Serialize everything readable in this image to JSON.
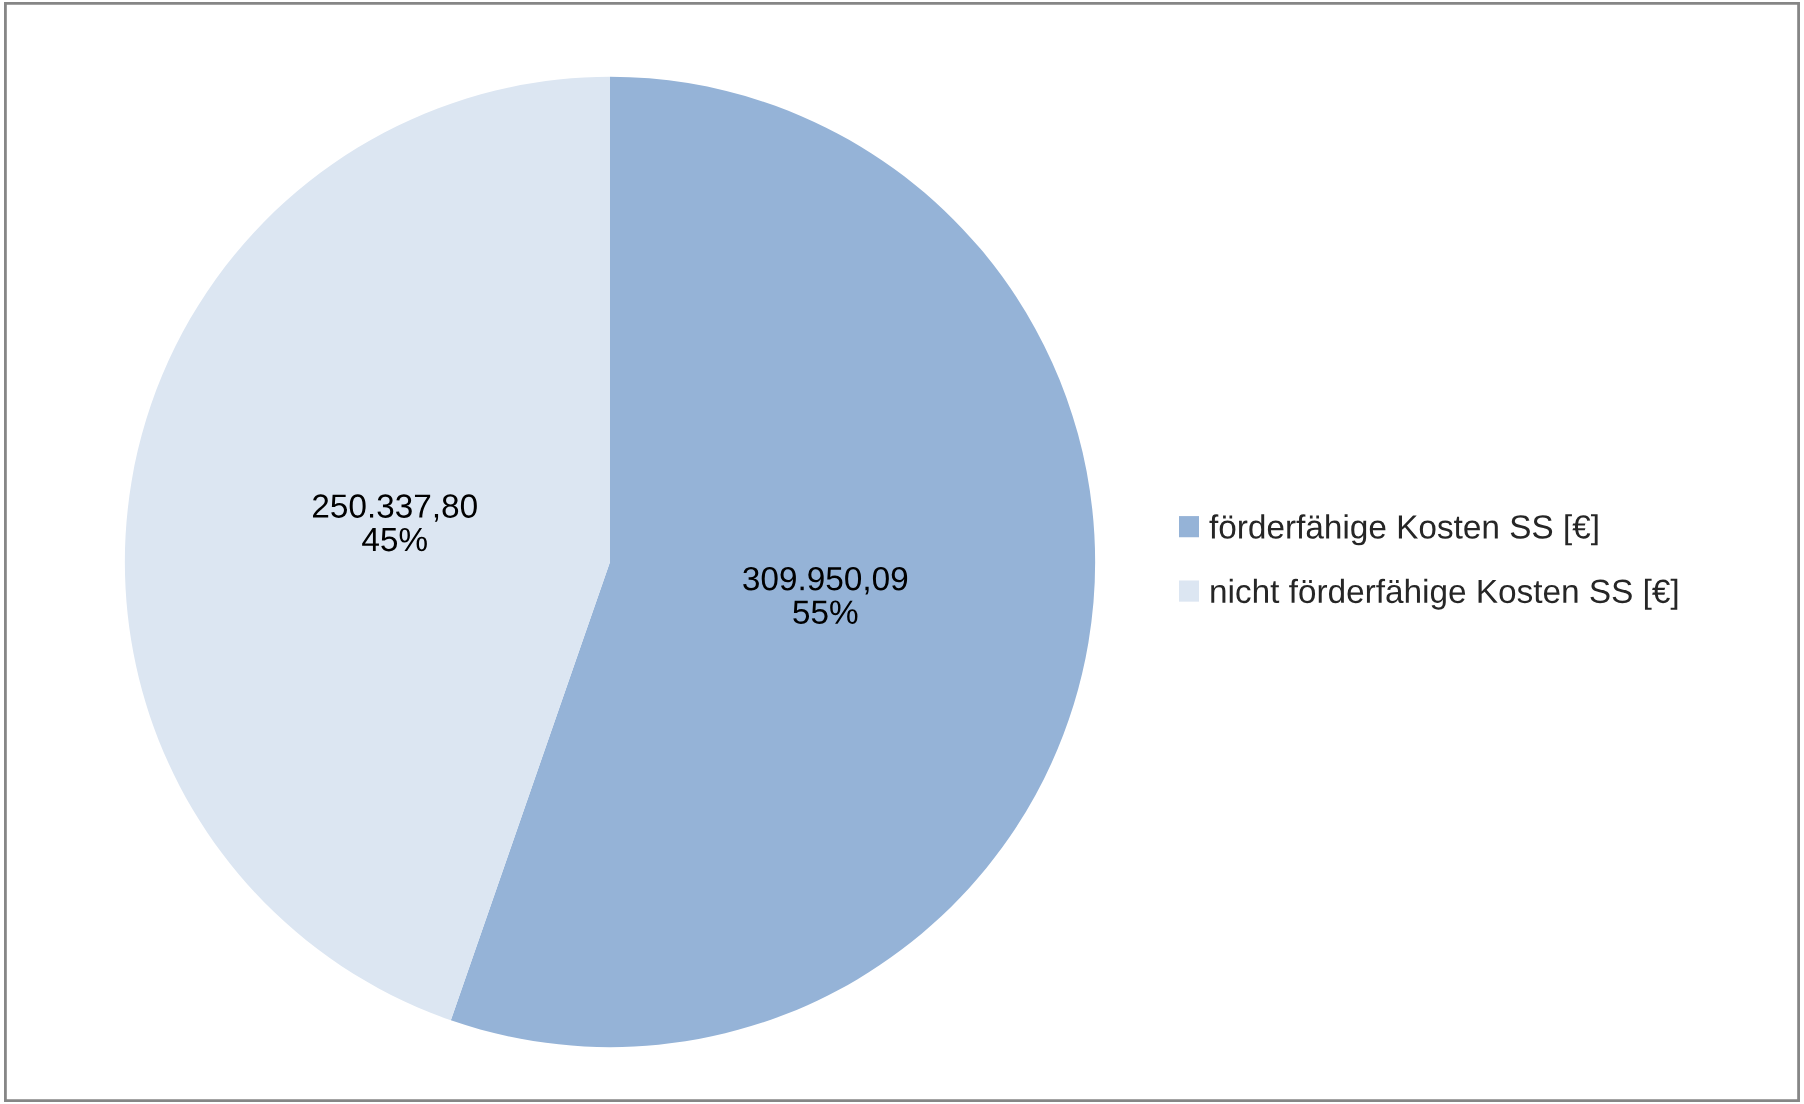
{
  "chart_data": {
    "type": "pie",
    "categories": [
      "förderfähige Kosten SS [€]",
      "nicht förderfähige Kosten SS [€]"
    ],
    "values": [
      309950.09,
      250337.8
    ],
    "colors": [
      "#95b3d7",
      "#dce6f2"
    ],
    "value_labels": [
      "309.950,09\n55%",
      "250.337,80\n45%"
    ],
    "legend": "right"
  }
}
